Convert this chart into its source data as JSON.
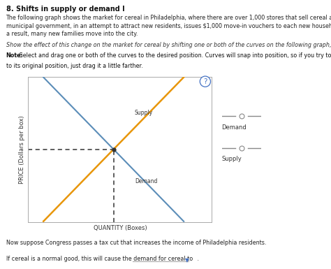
{
  "title": "8. Shifts in supply or demand I",
  "p1_line1": "The following graph shows the market for cereal in Philadelphia, where there are over 1,000 stores that sell cereal at any given moment. Suppose the",
  "p1_line2": "municipal government, in an attempt to attract new residents, issues $1,000 move-in vouchers to each new household that moves to Philadelphia. As",
  "p1_line3": "a result, many new families move into the city.",
  "p2": "Show the effect of this change on the market for cereal by shifting one or both of the curves on the following graph, holding all else constant.",
  "note_line1": "Note: Select and drag one or both of the curves to the desired position. Curves will snap into position, so if you try to move a curve and it snaps back",
  "note_line2": "to its original position, just drag it a little farther.",
  "xlabel": "QUANTITY (Boxes)",
  "ylabel": "PRICE (Dollars per box)",
  "supply_color": "#E8960A",
  "demand_color": "#5B8DB8",
  "dashed_color": "#333333",
  "legend_demand_label": "Demand",
  "legend_supply_label": "Supply",
  "bottom_text1": "Now suppose Congress passes a tax cut that increases the income of Philadelphia residents.",
  "bottom_text2": "If cereal is a normal good, this will cause the demand for cereal to",
  "graph_bg": "#ffffff",
  "outer_bg": "#ffffff",
  "border_color": "#cccccc"
}
